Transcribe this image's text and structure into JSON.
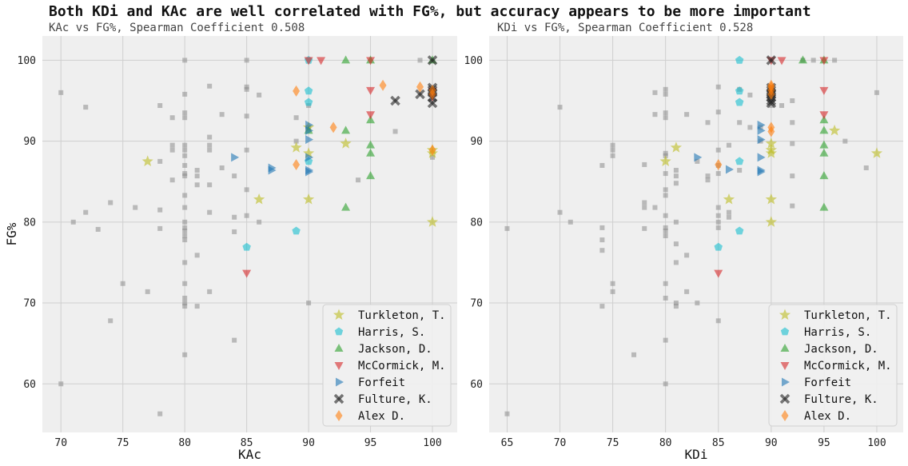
{
  "suptitle": "Both KDi and KAc are well correlated with FG%, but accuracy appears to be more important",
  "colors": {
    "background": "#efefef",
    "grid": "#cfcfcf",
    "gray_points": "#8c8c8c",
    "Turkleton, T.": "#bcbd22",
    "Harris, S.": "#17becf",
    "Jackson, D.": "#2ca02c",
    "McCormick, M.": "#d62728",
    "Forfeit": "#1f77b4",
    "Fulture, K.": "#222222",
    "Alex D.": "#ff7f0e"
  },
  "legend_order": [
    "Turkleton, T.",
    "Harris, S.",
    "Jackson, D.",
    "McCormick, M.",
    "Forfeit",
    "Fulture, K.",
    "Alex D."
  ],
  "markers": {
    "Turkleton, T.": "star",
    "Harris, S.": "pentagon",
    "Jackson, D.": "triangle-up",
    "McCormick, M.": "triangle-down",
    "Forfeit": "triangle-right",
    "Fulture, K.": "x",
    "Alex D.": "diamond"
  },
  "chart_data": [
    {
      "type": "scatter",
      "title": "KAc vs FG%, Spearman Coefficient 0.508",
      "xlabel": "KAc",
      "ylabel": "FG%",
      "xlim": [
        68.5,
        102
      ],
      "ylim": [
        54,
        103
      ],
      "xticks": [
        70,
        75,
        80,
        85,
        90,
        95,
        100
      ],
      "yticks": [
        60,
        70,
        80,
        90,
        100
      ],
      "grid": true,
      "legend_placement": "bottom-right",
      "background_points": [
        [
          70,
          96
        ],
        [
          70,
          60
        ],
        [
          71,
          80
        ],
        [
          72,
          94.2
        ],
        [
          72,
          81.2
        ],
        [
          73,
          79.1
        ],
        [
          74,
          82.4
        ],
        [
          74,
          67.8
        ],
        [
          75,
          72.4
        ],
        [
          76,
          81.8
        ],
        [
          77,
          71.4
        ],
        [
          78,
          94.4
        ],
        [
          78,
          87.5
        ],
        [
          78,
          81.5
        ],
        [
          78,
          79.2
        ],
        [
          78,
          56.3
        ],
        [
          79,
          92.9
        ],
        [
          79,
          89.5
        ],
        [
          79,
          88.9
        ],
        [
          79,
          85.2
        ],
        [
          80,
          100
        ],
        [
          80,
          95.8
        ],
        [
          80,
          93.5
        ],
        [
          80,
          92.9
        ],
        [
          80,
          89.5
        ],
        [
          80,
          88.9
        ],
        [
          80,
          88.2
        ],
        [
          80,
          87
        ],
        [
          80,
          86
        ],
        [
          80,
          85.7
        ],
        [
          80,
          83.3
        ],
        [
          80,
          81.8
        ],
        [
          80,
          80
        ],
        [
          80,
          79.3
        ],
        [
          80,
          78.9
        ],
        [
          80,
          78.3
        ],
        [
          80,
          77.8
        ],
        [
          80,
          75
        ],
        [
          80,
          72.4
        ],
        [
          80,
          70.6
        ],
        [
          80,
          70
        ],
        [
          80,
          69.6
        ],
        [
          80,
          63.6
        ],
        [
          81,
          86.4
        ],
        [
          81,
          85.7
        ],
        [
          81,
          84.6
        ],
        [
          81,
          75.9
        ],
        [
          81,
          69.6
        ],
        [
          82,
          96.8
        ],
        [
          82,
          90.5
        ],
        [
          82,
          89.5
        ],
        [
          82,
          88.9
        ],
        [
          82,
          84.6
        ],
        [
          82,
          81.2
        ],
        [
          82,
          71.4
        ],
        [
          83,
          93.3
        ],
        [
          83,
          86.7
        ],
        [
          84,
          85.7
        ],
        [
          84,
          80.6
        ],
        [
          84,
          78.8
        ],
        [
          84,
          65.4
        ],
        [
          85,
          100
        ],
        [
          85,
          96.7
        ],
        [
          85,
          96.4
        ],
        [
          85,
          93.1
        ],
        [
          85,
          88.9
        ],
        [
          85,
          84
        ],
        [
          85,
          80.8
        ],
        [
          86,
          95.7
        ],
        [
          86,
          80
        ],
        [
          89,
          92.9
        ],
        [
          89,
          90
        ],
        [
          90,
          94.4
        ],
        [
          90,
          91.7
        ],
        [
          90,
          70
        ],
        [
          94,
          85.2
        ],
        [
          97,
          91.2
        ],
        [
          99,
          100
        ],
        [
          100,
          88
        ]
      ],
      "series": [
        {
          "name": "Turkleton, T.",
          "points": [
            [
              77,
              87.5
            ],
            [
              86,
              82.8
            ],
            [
              89,
              89.2
            ],
            [
              90,
              91.7
            ],
            [
              90,
              88.5
            ],
            [
              90,
              82.8
            ],
            [
              93,
              89.7
            ],
            [
              100,
              88.9
            ],
            [
              100,
              88.5
            ],
            [
              100,
              80
            ]
          ]
        },
        {
          "name": "Harris, S.",
          "points": [
            [
              85,
              76.9
            ],
            [
              89,
              78.9
            ],
            [
              90,
              100
            ],
            [
              90,
              96.2
            ],
            [
              90,
              94.8
            ],
            [
              90,
              87.5
            ]
          ]
        },
        {
          "name": "Jackson, D.",
          "points": [
            [
              93,
              100
            ],
            [
              93,
              91.3
            ],
            [
              93,
              81.8
            ],
            [
              95,
              100
            ],
            [
              95,
              92.6
            ],
            [
              95,
              89.5
            ],
            [
              95,
              88.5
            ],
            [
              95,
              85.7
            ],
            [
              100,
              100
            ],
            [
              90,
              91.3
            ]
          ]
        },
        {
          "name": "McCormick, M.",
          "points": [
            [
              85,
              73.7
            ],
            [
              90,
              100
            ],
            [
              91,
              100
            ],
            [
              95,
              100
            ],
            [
              95,
              96.3
            ],
            [
              95,
              93.3
            ],
            [
              100,
              96.2
            ],
            [
              100,
              95.5
            ]
          ]
        },
        {
          "name": "Forfeit",
          "points": [
            [
              84,
              88
            ],
            [
              87,
              86.7
            ],
            [
              87,
              86.4
            ],
            [
              90,
              92
            ],
            [
              90,
              91.3
            ],
            [
              90,
              90.2
            ],
            [
              90,
              88
            ],
            [
              90,
              86.4
            ],
            [
              90,
              86.2
            ]
          ]
        },
        {
          "name": "Fulture, K.",
          "points": [
            [
              97,
              95
            ],
            [
              99,
              95.8
            ],
            [
              100,
              100
            ],
            [
              100,
              96.6
            ],
            [
              100,
              96.3
            ],
            [
              100,
              96
            ],
            [
              100,
              95.4
            ],
            [
              100,
              94.7
            ]
          ]
        },
        {
          "name": "Alex D.",
          "points": [
            [
              89,
              96.2
            ],
            [
              89,
              87.1
            ],
            [
              92,
              91.7
            ],
            [
              96,
              96.9
            ],
            [
              99,
              96.7
            ],
            [
              100,
              96.3
            ],
            [
              100,
              95.8
            ],
            [
              100,
              88.9
            ]
          ]
        }
      ]
    },
    {
      "type": "scatter",
      "title": "KDi vs FG%, Spearman Coefficient 0.528",
      "xlabel": "KDi",
      "ylabel": "",
      "xlim": [
        63.3,
        102.5
      ],
      "ylim": [
        54,
        103
      ],
      "xticks": [
        65,
        70,
        75,
        80,
        85,
        90,
        95,
        100
      ],
      "yticks": [
        60,
        70,
        80,
        90,
        100
      ],
      "grid": true,
      "legend_placement": "bottom-right",
      "background_points": [
        [
          65,
          79.2
        ],
        [
          65,
          56.3
        ],
        [
          70,
          94.2
        ],
        [
          70,
          81.2
        ],
        [
          71,
          80
        ],
        [
          74,
          87
        ],
        [
          74,
          79.3
        ],
        [
          74,
          77.8
        ],
        [
          74,
          76.5
        ],
        [
          74,
          69.6
        ],
        [
          75,
          89.5
        ],
        [
          75,
          88.9
        ],
        [
          75,
          88.2
        ],
        [
          75,
          72.4
        ],
        [
          75,
          71.4
        ],
        [
          77,
          63.6
        ],
        [
          78,
          87.1
        ],
        [
          78,
          82.4
        ],
        [
          78,
          81.8
        ],
        [
          78,
          79.2
        ],
        [
          79,
          96
        ],
        [
          79,
          93.3
        ],
        [
          79,
          81.8
        ],
        [
          80,
          96.4
        ],
        [
          80,
          95.8
        ],
        [
          80,
          93.5
        ],
        [
          80,
          92.9
        ],
        [
          80,
          88.5
        ],
        [
          80,
          88.2
        ],
        [
          80,
          86
        ],
        [
          80,
          84
        ],
        [
          80,
          83.3
        ],
        [
          80,
          80.8
        ],
        [
          80,
          79.3
        ],
        [
          80,
          78.9
        ],
        [
          80,
          78.3
        ],
        [
          80,
          72.4
        ],
        [
          80,
          70.6
        ],
        [
          80,
          65.4
        ],
        [
          80,
          60
        ],
        [
          81,
          86.4
        ],
        [
          81,
          85.7
        ],
        [
          81,
          84.8
        ],
        [
          81,
          80
        ],
        [
          81,
          77.3
        ],
        [
          81,
          75
        ],
        [
          81,
          70
        ],
        [
          81,
          69.6
        ],
        [
          82,
          93.3
        ],
        [
          82,
          75.9
        ],
        [
          82,
          71.4
        ],
        [
          83,
          87.5
        ],
        [
          83,
          70
        ],
        [
          84,
          92.3
        ],
        [
          84,
          85.7
        ],
        [
          84,
          85.2
        ],
        [
          85,
          96.7
        ],
        [
          85,
          93.6
        ],
        [
          85,
          88.9
        ],
        [
          85,
          87
        ],
        [
          85,
          86
        ],
        [
          85,
          81.8
        ],
        [
          85,
          80.8
        ],
        [
          85,
          80
        ],
        [
          85,
          79.3
        ],
        [
          85,
          67.8
        ],
        [
          86,
          89.5
        ],
        [
          86,
          81.2
        ],
        [
          86,
          80.6
        ],
        [
          87,
          96.4
        ],
        [
          87,
          92.3
        ],
        [
          87,
          86.4
        ],
        [
          88,
          95.7
        ],
        [
          88,
          91.7
        ],
        [
          89,
          91.7
        ],
        [
          89,
          90
        ],
        [
          90,
          94.4
        ],
        [
          91,
          94.4
        ],
        [
          92,
          95
        ],
        [
          92,
          92.3
        ],
        [
          92,
          89.7
        ],
        [
          92,
          85.7
        ],
        [
          92,
          82
        ],
        [
          93,
          100
        ],
        [
          94,
          100
        ],
        [
          96,
          100
        ],
        [
          97,
          90
        ],
        [
          99,
          86.7
        ],
        [
          100,
          96
        ]
      ],
      "series": [
        {
          "name": "Turkleton, T.",
          "points": [
            [
              80,
              87.5
            ],
            [
              81,
              89.2
            ],
            [
              86,
              82.8
            ],
            [
              90,
              89.7
            ],
            [
              90,
              88.9
            ],
            [
              90,
              88.5
            ],
            [
              90,
              82.8
            ],
            [
              90,
              80
            ],
            [
              96,
              91.3
            ],
            [
              100,
              88.5
            ]
          ]
        },
        {
          "name": "Harris, S.",
          "points": [
            [
              85,
              76.9
            ],
            [
              87,
              100
            ],
            [
              87,
              96.2
            ],
            [
              87,
              94.8
            ],
            [
              87,
              87.5
            ],
            [
              87,
              78.9
            ]
          ]
        },
        {
          "name": "Jackson, D.",
          "points": [
            [
              93,
              100
            ],
            [
              95,
              100
            ],
            [
              95,
              92.6
            ],
            [
              95,
              91.3
            ],
            [
              95,
              89.5
            ],
            [
              95,
              88.5
            ],
            [
              95,
              85.7
            ],
            [
              95,
              81.8
            ]
          ]
        },
        {
          "name": "McCormick, M.",
          "points": [
            [
              85,
              73.7
            ],
            [
              90,
              100
            ],
            [
              91,
              100
            ],
            [
              95,
              100
            ],
            [
              95,
              96.3
            ],
            [
              95,
              93.3
            ]
          ]
        },
        {
          "name": "Forfeit",
          "points": [
            [
              83,
              88
            ],
            [
              86,
              86.5
            ],
            [
              89,
              92
            ],
            [
              89,
              91.3
            ],
            [
              89,
              90.2
            ],
            [
              89,
              88
            ],
            [
              89,
              86.4
            ],
            [
              89,
              86.2
            ]
          ]
        },
        {
          "name": "Fulture, K.",
          "points": [
            [
              90,
              100
            ],
            [
              90,
              96.6
            ],
            [
              90,
              96.3
            ],
            [
              90,
              96
            ],
            [
              90,
              95.4
            ],
            [
              90,
              95
            ],
            [
              90,
              94.7
            ],
            [
              90,
              95.8
            ]
          ]
        },
        {
          "name": "Alex D.",
          "points": [
            [
              85,
              87.1
            ],
            [
              90,
              96.9
            ],
            [
              90,
              96.7
            ],
            [
              90,
              96.3
            ],
            [
              90,
              95.8
            ],
            [
              90,
              91.7
            ],
            [
              90,
              91.2
            ]
          ]
        }
      ]
    }
  ]
}
